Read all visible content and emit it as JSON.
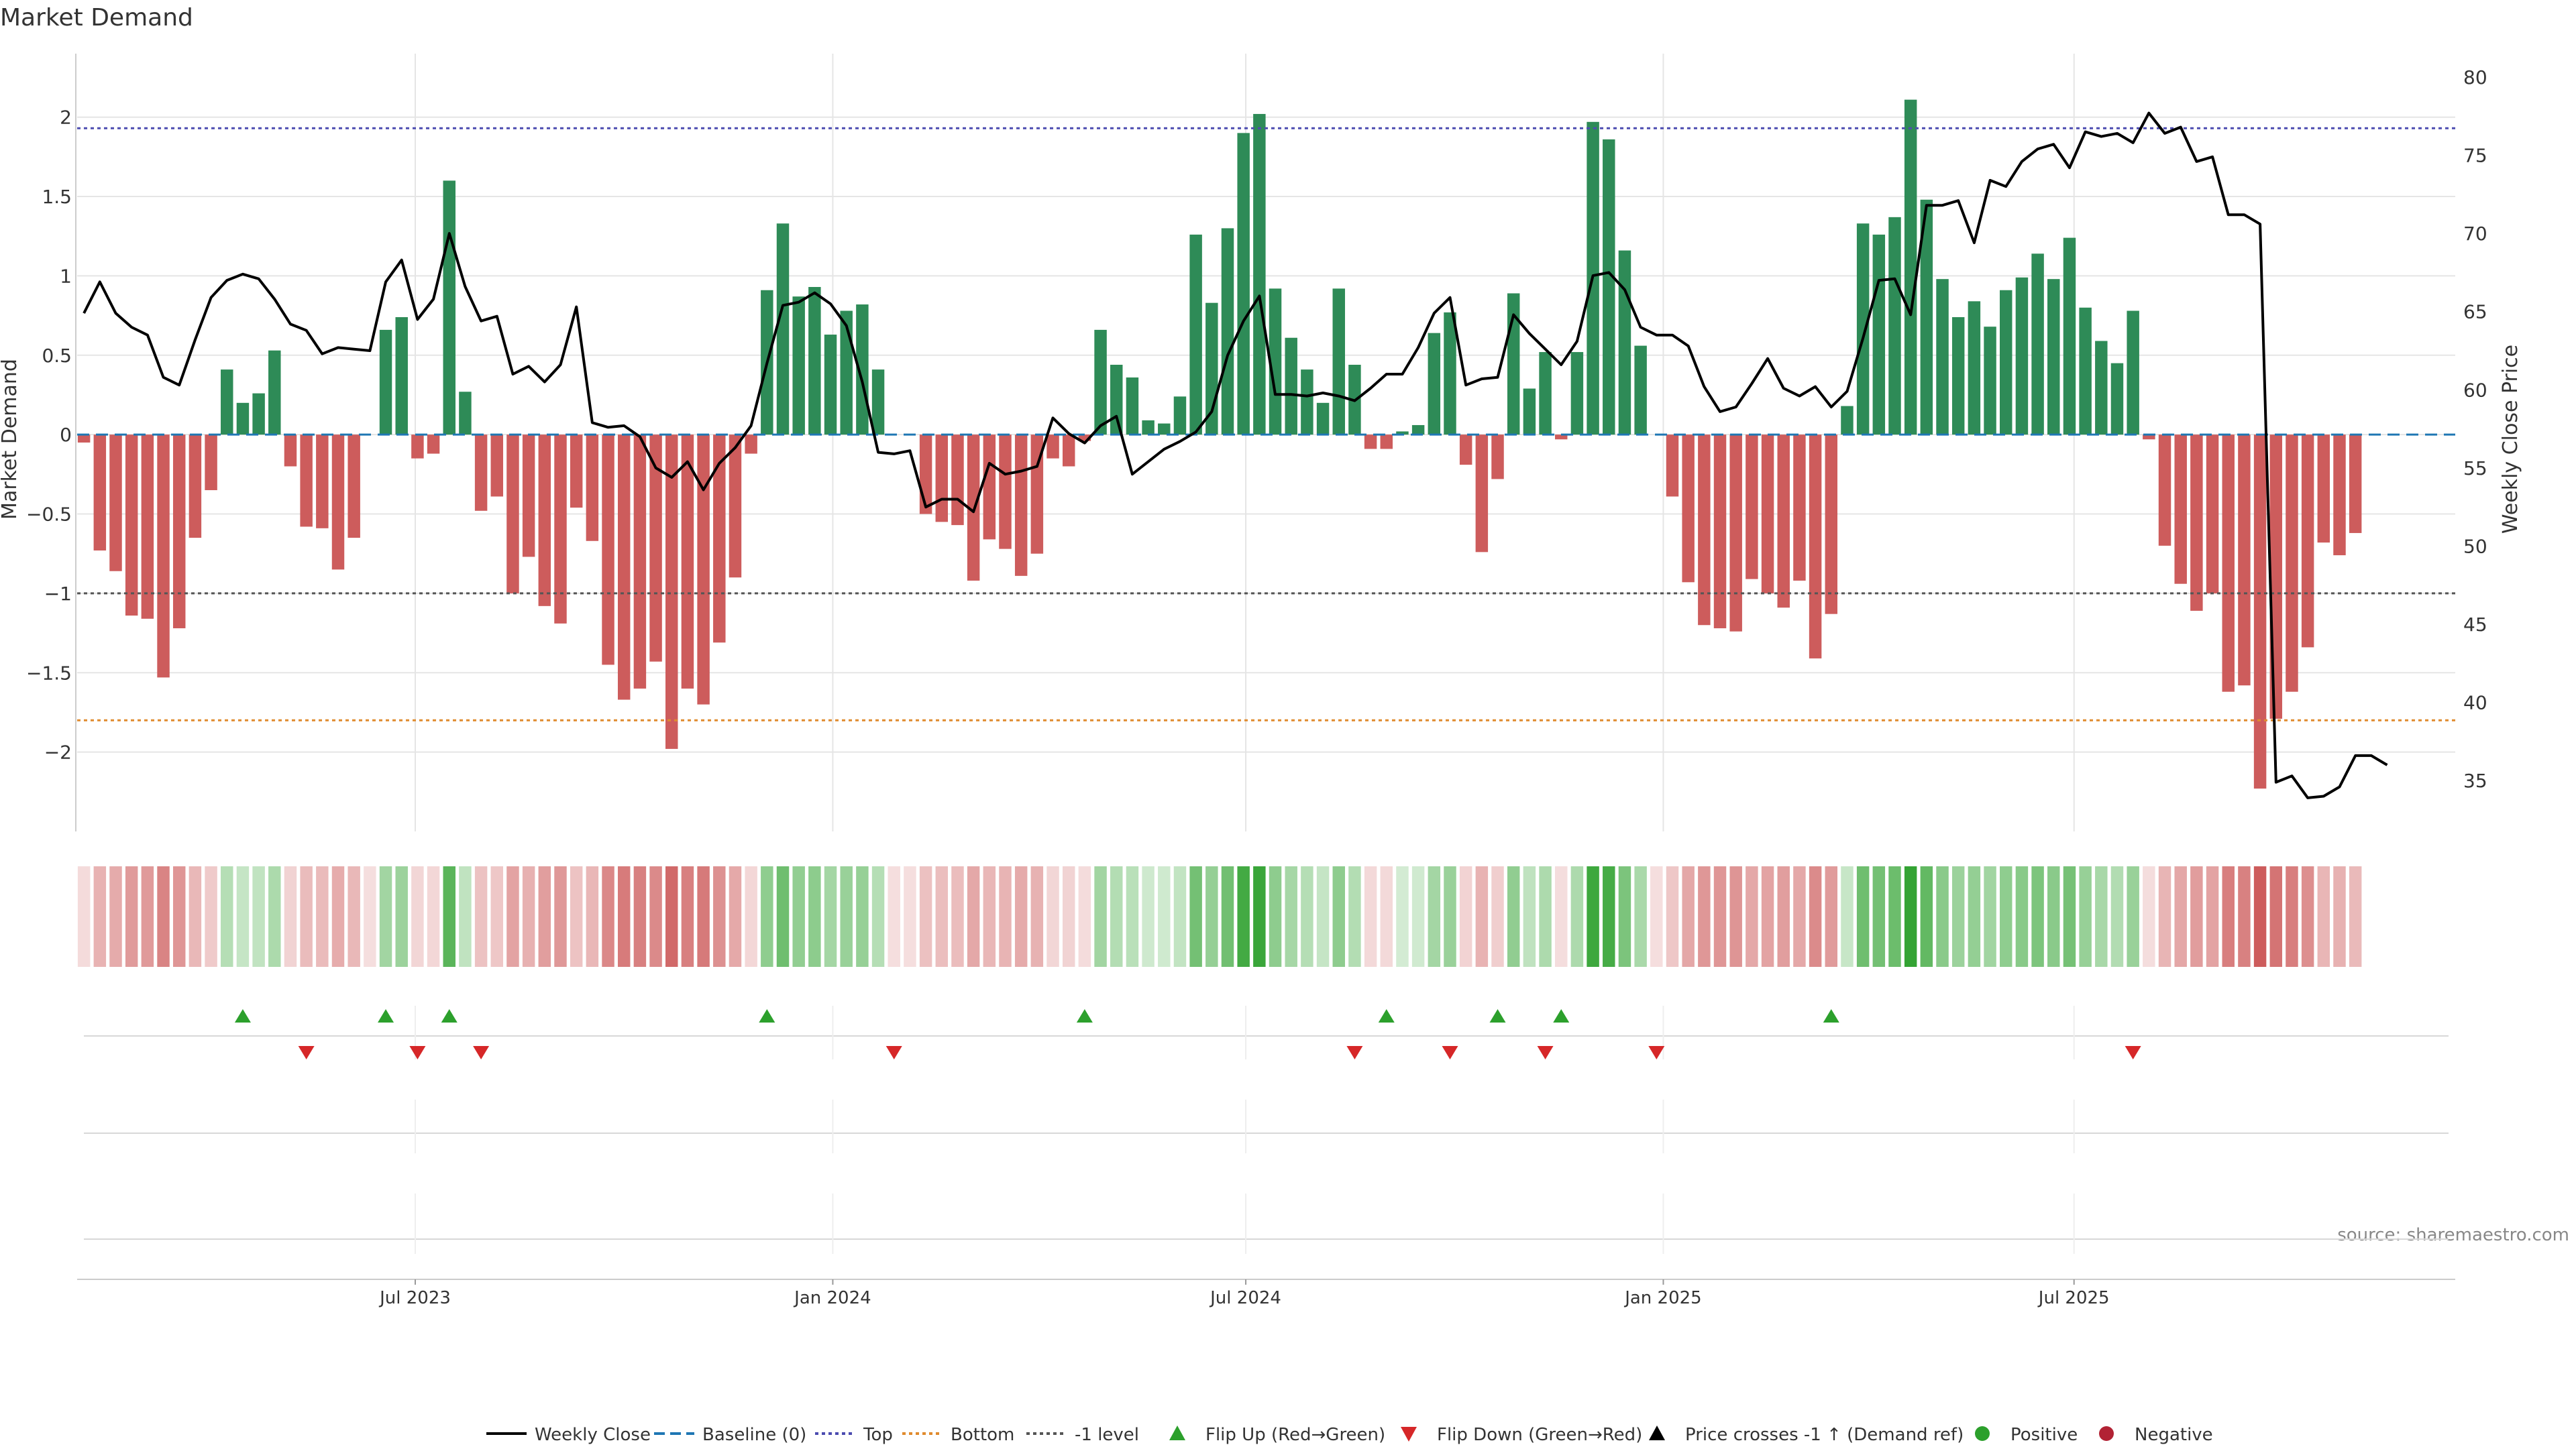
{
  "chart_data": {
    "type": "bar",
    "title": "Market Demand",
    "ylabel": "Market Demand",
    "y2label": "Weekly Close Price",
    "ylim": [
      -2.5,
      2.4
    ],
    "y2lim": [
      31.75,
      81.5
    ],
    "yticks": [
      {
        "v": 2,
        "t": "2"
      },
      {
        "v": 1.5,
        "t": "1.5"
      },
      {
        "v": 1,
        "t": "1"
      },
      {
        "v": 0.5,
        "t": "0.5"
      },
      {
        "v": 0,
        "t": "0"
      },
      {
        "v": -0.5,
        "t": "−0.5"
      },
      {
        "v": -1,
        "t": "−1"
      },
      {
        "v": -1.5,
        "t": "−1.5"
      },
      {
        "v": -2,
        "t": "−2"
      }
    ],
    "y2ticks": [
      {
        "v": 80,
        "t": "80"
      },
      {
        "v": 75,
        "t": "75"
      },
      {
        "v": 70,
        "t": "70"
      },
      {
        "v": 65,
        "t": "65"
      },
      {
        "v": 60,
        "t": "60"
      },
      {
        "v": 55,
        "t": "55"
      },
      {
        "v": 50,
        "t": "50"
      },
      {
        "v": 45,
        "t": "45"
      },
      {
        "v": 40,
        "t": "40"
      },
      {
        "v": 35,
        "t": "35"
      }
    ],
    "x_dates": [
      "2023-07-01",
      "2024-01-01",
      "2024-07-01",
      "2025-01-01",
      "2025-07-01"
    ],
    "x_tick_labels": [
      "Jul 2023",
      "Jan 2024",
      "Jul 2024",
      "Jan 2025",
      "Jul 2025"
    ],
    "x_start": "2023-02-05",
    "week_step_days": 7,
    "x_range": [
      "2023-02-02",
      "2025-12-16"
    ],
    "top_level": 1.93,
    "bottom_level": -1.8,
    "minus1_level": -1,
    "grid": true,
    "demand": [
      -0.05,
      -0.73,
      -0.86,
      -1.14,
      -1.16,
      -1.53,
      -1.22,
      -0.65,
      -0.35,
      0.41,
      0.2,
      0.26,
      0.53,
      -0.2,
      -0.58,
      -0.59,
      -0.85,
      -0.65,
      0.0,
      0.66,
      0.74,
      -0.15,
      -0.12,
      1.6,
      0.27,
      -0.48,
      -0.39,
      -1.0,
      -0.77,
      -1.08,
      -1.19,
      -0.46,
      -0.67,
      -1.45,
      -1.67,
      -1.6,
      -1.43,
      -1.98,
      -1.6,
      -1.7,
      -1.31,
      -0.9,
      -0.12,
      0.91,
      1.33,
      0.87,
      0.93,
      0.63,
      0.78,
      0.82,
      0.41,
      0.0,
      0.0,
      -0.5,
      -0.55,
      -0.57,
      -0.92,
      -0.66,
      -0.72,
      -0.89,
      -0.75,
      -0.15,
      -0.2,
      -0.04,
      0.66,
      0.44,
      0.36,
      0.09,
      0.07,
      0.24,
      1.26,
      0.83,
      1.3,
      1.9,
      2.02,
      0.92,
      0.61,
      0.41,
      0.2,
      0.92,
      0.44,
      -0.09,
      -0.09,
      0.02,
      0.06,
      0.64,
      0.77,
      -0.19,
      -0.74,
      -0.28,
      0.89,
      0.29,
      0.52,
      -0.03,
      0.52,
      1.97,
      1.86,
      1.16,
      0.56,
      0.0,
      -0.39,
      -0.93,
      -1.2,
      -1.22,
      -1.24,
      -0.91,
      -1.0,
      -1.09,
      -0.92,
      -1.41,
      -1.13,
      0.18,
      1.33,
      1.26,
      1.37,
      2.11,
      1.48,
      0.98,
      0.74,
      0.84,
      0.68,
      0.91,
      0.99,
      1.14,
      0.98,
      1.24,
      0.8,
      0.59,
      0.45,
      0.78,
      -0.03,
      -0.7,
      -0.94,
      -1.11,
      -1.0,
      -1.62,
      -1.58,
      -2.23,
      -1.79,
      -1.62,
      -1.34,
      -0.68,
      -0.76,
      -0.62
    ],
    "price": [
      64.9,
      66.9,
      64.9,
      64.0,
      63.5,
      60.8,
      60.3,
      63.2,
      65.9,
      67.0,
      67.4,
      67.1,
      65.8,
      64.2,
      63.8,
      62.3,
      62.7,
      62.6,
      62.5,
      66.9,
      68.3,
      64.5,
      65.8,
      70.0,
      66.6,
      64.4,
      64.7,
      61.0,
      61.5,
      60.5,
      61.6,
      65.3,
      57.9,
      57.6,
      57.7,
      57.0,
      55.0,
      54.4,
      55.4,
      53.6,
      55.3,
      56.3,
      57.7,
      61.7,
      65.4,
      65.6,
      66.2,
      65.5,
      64.1,
      60.5,
      56.0,
      55.9,
      56.1,
      52.5,
      53.0,
      53.0,
      52.2,
      55.3,
      54.6,
      54.8,
      55.1,
      58.2,
      57.2,
      56.6,
      57.7,
      58.3,
      54.6,
      55.4,
      56.2,
      56.7,
      57.3,
      58.6,
      62.2,
      64.4,
      66.0,
      59.7,
      59.7,
      59.6,
      59.8,
      59.6,
      59.3,
      60.1,
      61.0,
      61.0,
      62.7,
      64.9,
      65.9,
      60.3,
      60.7,
      60.8,
      64.8,
      63.6,
      62.6,
      61.6,
      63.1,
      67.3,
      67.5,
      66.4,
      64.0,
      63.5,
      63.5,
      62.8,
      60.2,
      58.6,
      58.9,
      60.4,
      62.0,
      60.1,
      59.6,
      60.2,
      58.9,
      59.9,
      63.3,
      67.0,
      67.1,
      64.8,
      71.8,
      71.8,
      72.1,
      69.4,
      73.4,
      73.0,
      74.6,
      75.4,
      75.7,
      74.2,
      76.5,
      76.2,
      76.4,
      75.8,
      77.7,
      76.4,
      76.8,
      74.6,
      74.9,
      71.2,
      71.2,
      70.6,
      34.9,
      35.3,
      33.9,
      34.0,
      34.6,
      36.6,
      36.6,
      36.0
    ],
    "flip_up_weeks": [
      10,
      19,
      23,
      43,
      63,
      82,
      89,
      93,
      110
    ],
    "flip_down_weeks": [
      14,
      21,
      25,
      51,
      80,
      86,
      92,
      99,
      129
    ],
    "legend_position": "bottom-center",
    "legend": [
      "Weekly Close",
      "Baseline (0)",
      "Top",
      "Bottom",
      "-1 level",
      "Flip Up (Red→Green)",
      "Flip Down (Green→Red)",
      "Price crosses -1 ↑ (Demand ref)",
      "Positive",
      "Negative"
    ],
    "source": "source: sharemaestro.com"
  },
  "colors": {
    "positive": "#2e8b57",
    "negative": "#cd5c5c",
    "price": "#000000",
    "baseline": "#1f77b4",
    "top": "#4c4cb0",
    "bottom": "#e08b2e",
    "minus1": "#555555",
    "flip_up": "#2ca02c",
    "flip_down": "#d62728",
    "grid": "#e5e5e5",
    "text": "#333333",
    "source": "#888888"
  }
}
